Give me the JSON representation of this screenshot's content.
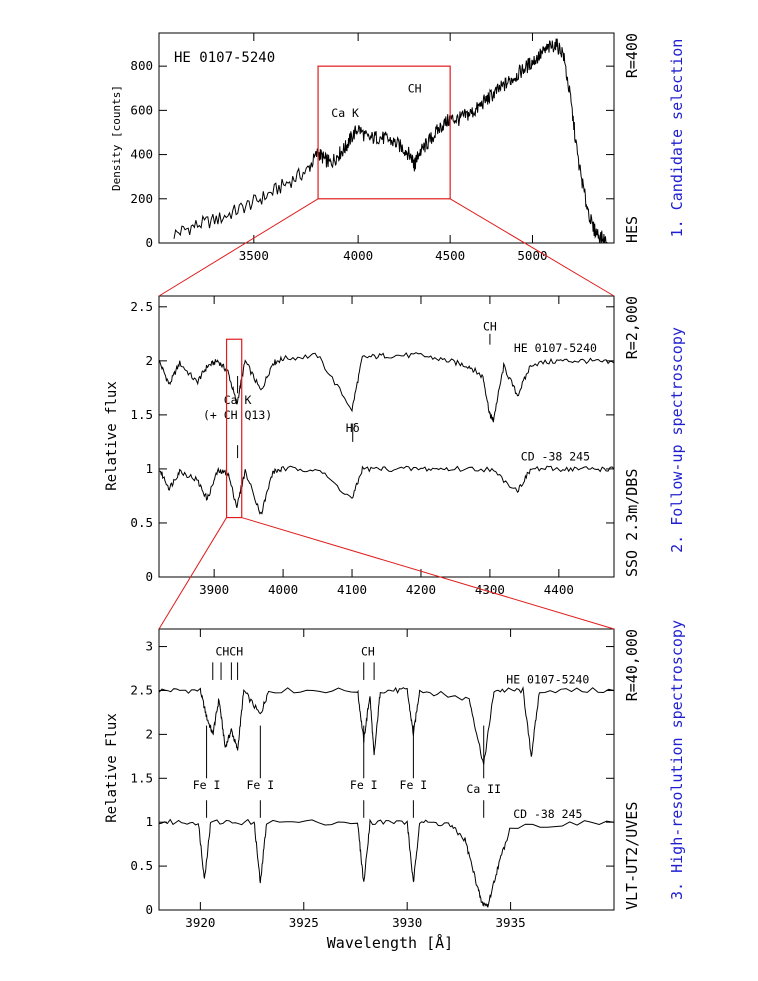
{
  "colors": {
    "axis": "#000000",
    "zoom_box": "#e01c1c",
    "stage_label": "#1f1fd0"
  },
  "chart_data": [
    {
      "type": "line",
      "panel": "top",
      "stage": "1. Candidate selection",
      "instrument": "HES",
      "resolution": "R=400",
      "star_label": "HE 0107-5240",
      "ylabel": "Density [counts]",
      "xlabel": "",
      "x_scale": "log",
      "xlim": [
        3100,
        5550
      ],
      "ylim": [
        0,
        950
      ],
      "xticks": [
        3500,
        4000,
        4500,
        5000
      ],
      "yticks": [
        0,
        200,
        400,
        600,
        800
      ],
      "zoom_box": {
        "x": [
          3800,
          4500
        ],
        "y": [
          200,
          800
        ]
      },
      "annotations": [
        {
          "text": "Ca K",
          "x": 3934,
          "y": 570
        },
        {
          "text": "CH",
          "x": 4300,
          "y": 680
        }
      ],
      "series": [
        {
          "x": [
            3160,
            3250,
            3350,
            3450,
            3550,
            3650,
            3750,
            3800,
            3830,
            3860,
            3900,
            3934,
            3960,
            4000,
            4050,
            4100,
            4150,
            4200,
            4250,
            4290,
            4300,
            4320,
            4360,
            4400,
            4450,
            4500,
            4550,
            4600,
            4650,
            4700,
            4750,
            4800,
            4850,
            4900,
            4950,
            5000,
            5050,
            5100,
            5150,
            5200,
            5250,
            5300,
            5350,
            5400,
            5450,
            5500
          ],
          "y": [
            40,
            80,
            110,
            160,
            210,
            270,
            330,
            410,
            380,
            360,
            400,
            430,
            470,
            520,
            470,
            480,
            470,
            450,
            420,
            380,
            350,
            400,
            440,
            480,
            530,
            560,
            560,
            580,
            600,
            640,
            670,
            700,
            730,
            760,
            790,
            820,
            850,
            880,
            900,
            860,
            650,
            380,
            200,
            70,
            30,
            5
          ]
        }
      ]
    },
    {
      "type": "line",
      "panel": "middle",
      "stage": "2. Follow-up spectroscopy",
      "instrument": "SSO 2.3m/DBS",
      "resolution": "R=2,000",
      "ylabel": "Relative flux",
      "xlabel": "",
      "xlim": [
        3820,
        4480
      ],
      "ylim": [
        0,
        2.6
      ],
      "xticks": [
        3900,
        4000,
        4100,
        4200,
        4300,
        4400
      ],
      "yticks": [
        0,
        0.5,
        1,
        1.5,
        2,
        2.5
      ],
      "zoom_box": {
        "x": [
          3918,
          3940
        ],
        "y": [
          0.55,
          2.2
        ]
      },
      "annotations": [
        {
          "text": "Ca K",
          "x": 3934,
          "y": 1.6
        },
        {
          "text": "(+ CH Q13)",
          "x": 3934,
          "y": 1.46
        },
        {
          "text": "CH",
          "x": 4300,
          "y": 2.28
        },
        {
          "text": "Hδ",
          "x": 4101,
          "y": 1.34
        },
        {
          "text": "HE 0107-5240",
          "x": 4395,
          "y": 2.08
        },
        {
          "text": "CD -38 245",
          "x": 4395,
          "y": 1.08
        }
      ],
      "series": [
        {
          "name": "HE 0107-5240",
          "x": [
            3820,
            3835,
            3850,
            3875,
            3890,
            3905,
            3920,
            3933,
            3945,
            3968,
            3985,
            4000,
            4050,
            4100,
            4115,
            4150,
            4200,
            4240,
            4270,
            4290,
            4300,
            4305,
            4320,
            4340,
            4360,
            4400,
            4440,
            4480
          ],
          "y": [
            2.0,
            1.78,
            1.98,
            1.8,
            1.95,
            2.0,
            1.9,
            1.6,
            2.0,
            1.72,
            1.98,
            2.02,
            2.05,
            1.55,
            2.03,
            2.05,
            2.05,
            2.0,
            1.95,
            1.85,
            1.5,
            1.45,
            1.95,
            1.68,
            1.97,
            2.0,
            2.0,
            1.98
          ]
        },
        {
          "name": "CD -38 245",
          "x": [
            3820,
            3835,
            3850,
            3875,
            3890,
            3905,
            3920,
            3933,
            3945,
            3968,
            3985,
            4000,
            4050,
            4100,
            4115,
            4150,
            4200,
            4240,
            4300,
            4340,
            4360,
            4400,
            4440,
            4480
          ],
          "y": [
            1.0,
            0.82,
            0.98,
            0.9,
            0.72,
            0.98,
            0.96,
            0.65,
            0.98,
            0.58,
            0.97,
            1.0,
            1.0,
            0.72,
            1.0,
            1.0,
            1.0,
            1.0,
            1.0,
            0.8,
            1.0,
            1.0,
            1.0,
            1.0
          ]
        }
      ]
    },
    {
      "type": "line",
      "panel": "bottom",
      "stage": "3. High-resolution spectroscopy",
      "instrument": "VLT-UT2/UVES",
      "resolution": "R=40,000",
      "ylabel": "Relative Flux",
      "xlabel": "Wavelength [Å]",
      "xlim": [
        3918,
        3940
      ],
      "ylim": [
        0,
        3.2
      ],
      "xticks": [
        3920,
        3925,
        3930,
        3935
      ],
      "yticks": [
        0,
        0.5,
        1,
        1.5,
        2,
        2.5,
        3
      ],
      "annotations": [
        {
          "text": "CHCH",
          "x": 3921.4,
          "y": 2.9
        },
        {
          "text": "CH",
          "x": 3928.1,
          "y": 2.9
        },
        {
          "text": "HE 0107-5240",
          "x": 3936.8,
          "y": 2.58
        },
        {
          "text": "Fe I",
          "x": 3920.3,
          "y": 1.38
        },
        {
          "text": "Fe I",
          "x": 3922.9,
          "y": 1.38
        },
        {
          "text": "Fe I",
          "x": 3927.9,
          "y": 1.38
        },
        {
          "text": "Fe I",
          "x": 3930.3,
          "y": 1.38
        },
        {
          "text": "Ca II",
          "x": 3933.7,
          "y": 1.33
        },
        {
          "text": "CD -38 245",
          "x": 3936.8,
          "y": 1.05
        }
      ],
      "series": [
        {
          "name": "HE 0107-5240",
          "x": [
            3918,
            3920.0,
            3920.3,
            3920.6,
            3920.9,
            3921.2,
            3921.5,
            3921.8,
            3922.1,
            3922.9,
            3923.3,
            3927.6,
            3927.9,
            3928.2,
            3928.4,
            3928.7,
            3930.0,
            3930.3,
            3930.6,
            3933.0,
            3933.7,
            3934.2,
            3935.6,
            3936.0,
            3936.4,
            3940
          ],
          "y": [
            2.5,
            2.5,
            2.2,
            2.0,
            2.4,
            1.85,
            2.05,
            1.82,
            2.5,
            2.22,
            2.5,
            2.5,
            1.93,
            2.45,
            1.75,
            2.5,
            2.5,
            2.0,
            2.5,
            2.4,
            1.65,
            2.5,
            2.5,
            1.75,
            2.5,
            2.5
          ]
        },
        {
          "name": "CD -38 245",
          "x": [
            3918,
            3919.9,
            3920.2,
            3920.5,
            3922.6,
            3922.9,
            3923.2,
            3927.6,
            3927.9,
            3928.2,
            3930.0,
            3930.3,
            3930.6,
            3932.0,
            3932.8,
            3933.3,
            3933.6,
            3933.9,
            3934.4,
            3935.0,
            3940
          ],
          "y": [
            1.0,
            1.0,
            0.35,
            1.0,
            1.0,
            0.3,
            1.0,
            1.0,
            0.3,
            1.0,
            1.0,
            0.3,
            1.0,
            0.98,
            0.8,
            0.35,
            0.08,
            0.05,
            0.5,
            0.95,
            1.0
          ]
        }
      ]
    }
  ]
}
